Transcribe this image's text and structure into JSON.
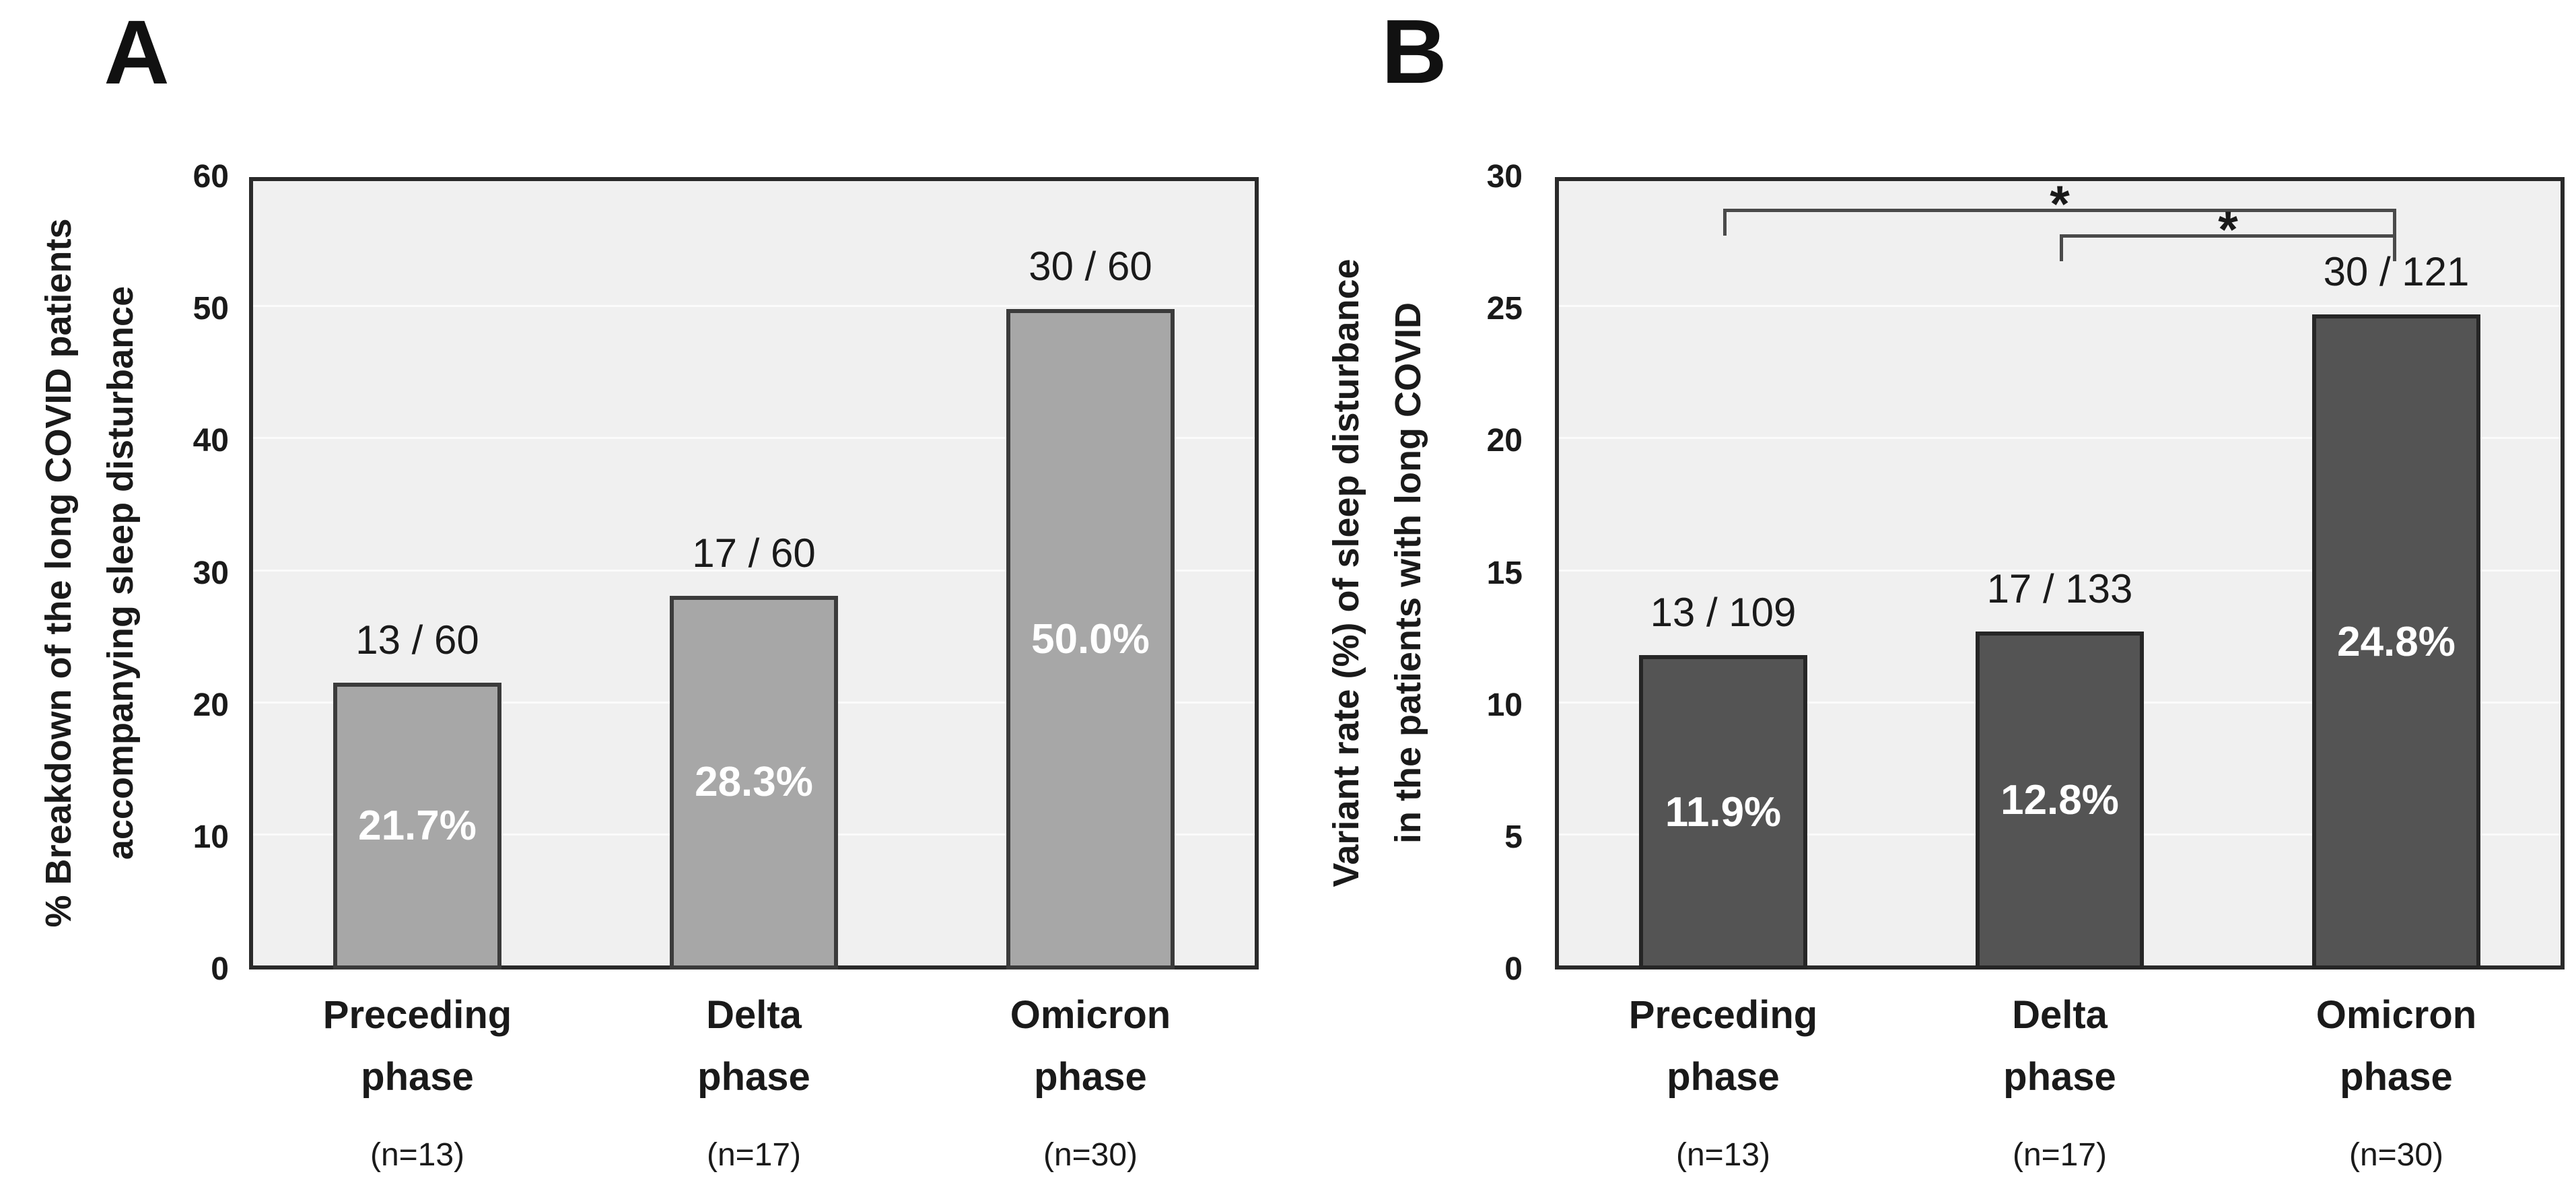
{
  "colors": {
    "page_bg": "#ffffff",
    "plot_bg": "#f0f0f0",
    "gridline": "#fbfbfb",
    "frame": "#2a2a2a",
    "text": "#1a1a1a",
    "bar_value_text": "#ffffff",
    "panel_a_bar_fill": "#a7a7a7",
    "panel_a_bar_border": "#3b3b3b",
    "panel_b_bar_fill": "#545454",
    "panel_b_bar_border": "#262626",
    "significance_line": "#4a4a4a"
  },
  "chart_data": [
    {
      "id": "A",
      "type": "bar",
      "panel_label": "A",
      "ylabel": "% Breakdown of the long COVID patients accompanying sleep disturbance",
      "ylabel_lines": [
        "% Breakdown of the long COVID patients",
        "accompanying sleep disturbance"
      ],
      "categories": [
        "Preceding phase",
        "Delta phase",
        "Omicron phase"
      ],
      "category_lines": [
        [
          "Preceding",
          "phase"
        ],
        [
          "Delta",
          "phase"
        ],
        [
          "Omicron",
          "phase"
        ]
      ],
      "n_labels": [
        "(n=13)",
        "(n=17)",
        "(n=30)"
      ],
      "values": [
        21.7,
        28.3,
        50.0
      ],
      "bar_labels": [
        "13 / 60",
        "17 / 60",
        "30 / 60"
      ],
      "value_labels": [
        "21.7%",
        "28.3%",
        "50.0%"
      ],
      "ylim": [
        0,
        60
      ],
      "ytick_labels": [
        "0",
        "10",
        "20",
        "30",
        "40",
        "50",
        "60"
      ],
      "grid": true,
      "legend": "none",
      "bar_fill": "#a7a7a7",
      "bar_border": "#3b3b3b",
      "significance": []
    },
    {
      "id": "B",
      "type": "bar",
      "panel_label": "B",
      "ylabel": "Variant rate (%) of sleep disturbance in the patients with long COVID",
      "ylabel_lines": [
        "Variant rate (%) of sleep disturbance",
        "in the patients with long COVID"
      ],
      "categories": [
        "Preceding phase",
        "Delta phase",
        "Omicron phase"
      ],
      "category_lines": [
        [
          "Preceding",
          "phase"
        ],
        [
          "Delta",
          "phase"
        ],
        [
          "Omicron",
          "phase"
        ]
      ],
      "n_labels": [
        "(n=13)",
        "(n=17)",
        "(n=30)"
      ],
      "values": [
        11.9,
        12.8,
        24.8
      ],
      "bar_labels": [
        "13 / 109",
        "17 / 133",
        "30 / 121"
      ],
      "value_labels": [
        "11.9%",
        "12.8%",
        "24.8%"
      ],
      "ylim": [
        0,
        30
      ],
      "ytick_labels": [
        "0",
        "5",
        "10",
        "15",
        "20",
        "25",
        "30"
      ],
      "grid": true,
      "legend": "none",
      "bar_fill": "#545454",
      "bar_border": "#262626",
      "significance": [
        {
          "from": 0,
          "to": 2,
          "from_category": "Preceding phase",
          "to_category": "Omicron phase",
          "label": "*"
        },
        {
          "from": 1,
          "to": 2,
          "from_category": "Delta phase",
          "to_category": "Omicron phase",
          "label": "*"
        }
      ]
    }
  ]
}
